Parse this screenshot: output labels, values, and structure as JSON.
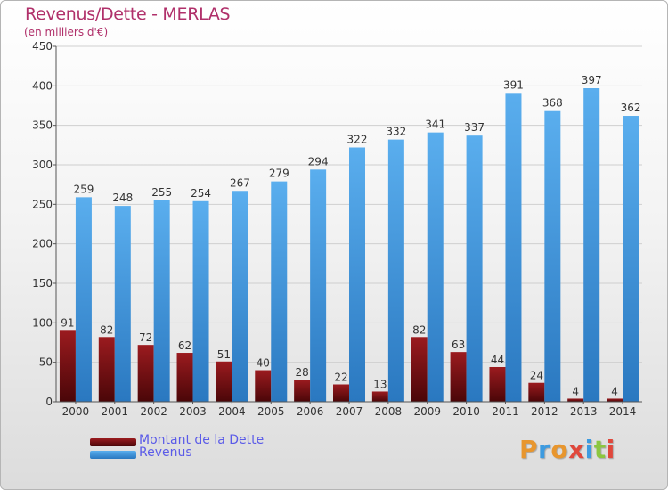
{
  "title": "Revenus/Dette - MERLAS",
  "subtitle": "(en milliers d'€)",
  "legend": [
    {
      "label": "Montant de la Dette",
      "color": "#7a0f12"
    },
    {
      "label": "Revenus",
      "color": "#3d8fd6"
    }
  ],
  "logo": {
    "text": "Proxiti",
    "colors": [
      "#e8962e",
      "#3d9be0",
      "#e8962e",
      "#e0473b",
      "#3d9be0",
      "#8cc63f",
      "#e0473b"
    ]
  },
  "colors": {
    "dette_top": "#9b1b1f",
    "dette_bottom": "#4a0608",
    "revenus_top": "#5aaeee",
    "revenus_bottom": "#2a78c0",
    "axis_text": "#333333",
    "grid": "#cfcfcf"
  },
  "chart_data": {
    "type": "bar",
    "categories": [
      "2000",
      "2001",
      "2002",
      "2003",
      "2004",
      "2005",
      "2006",
      "2007",
      "2008",
      "2009",
      "2010",
      "2011",
      "2012",
      "2013",
      "2014"
    ],
    "series": [
      {
        "name": "Montant de la Dette",
        "values": [
          91,
          82,
          72,
          62,
          51,
          40,
          28,
          22,
          13,
          82,
          63,
          44,
          24,
          4,
          4
        ]
      },
      {
        "name": "Revenus",
        "values": [
          259,
          248,
          255,
          254,
          267,
          279,
          294,
          322,
          332,
          341,
          337,
          391,
          368,
          397,
          362
        ]
      }
    ],
    "ylim": [
      0,
      450
    ],
    "yticks": [
      0,
      50,
      100,
      150,
      200,
      250,
      300,
      350,
      400,
      450
    ],
    "grid": true,
    "legend_position": "bottom-left"
  }
}
